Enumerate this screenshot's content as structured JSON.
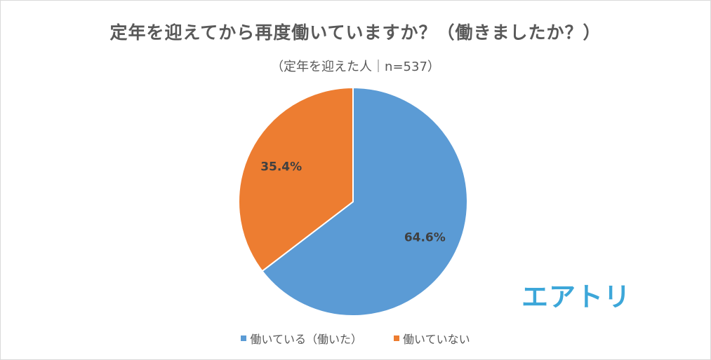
{
  "chart_data": {
    "type": "pie",
    "title": "定年を迎えてから再度働いていますか？（働きましたか？）",
    "subtitle": "（定年を迎えた人｜n=537）",
    "categories": [
      "働いている（働いた）",
      "働いていない"
    ],
    "values": [
      64.6,
      35.4
    ],
    "labels": [
      "64.6%",
      "35.4%"
    ],
    "colors": [
      "#5b9bd5",
      "#ed7d31"
    ],
    "legend_position": "bottom"
  },
  "logo": {
    "text": "エアトリ"
  }
}
